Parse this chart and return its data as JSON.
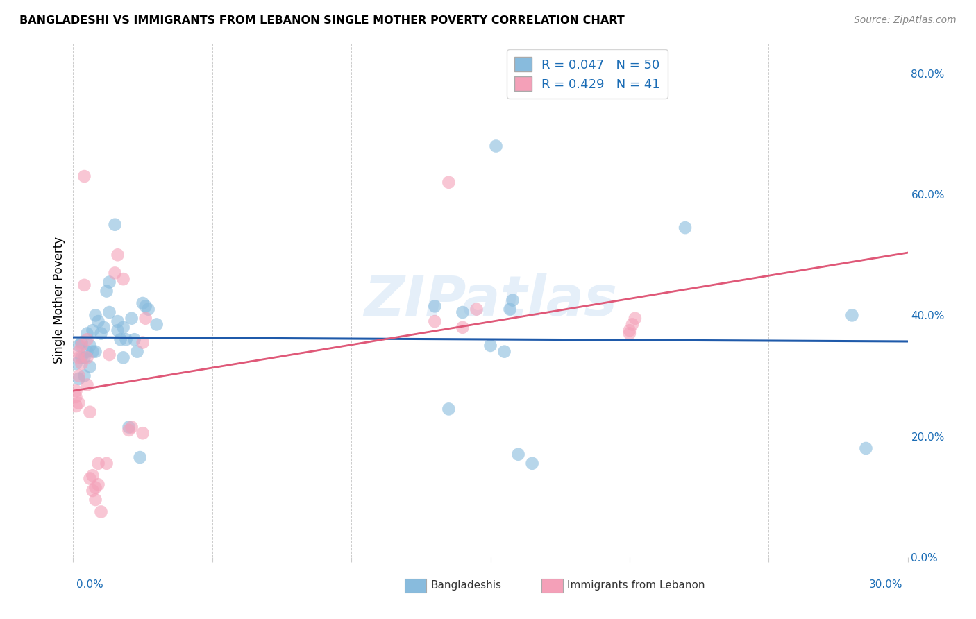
{
  "title": "BANGLADESHI VS IMMIGRANTS FROM LEBANON SINGLE MOTHER POVERTY CORRELATION CHART",
  "source": "Source: ZipAtlas.com",
  "ylabel": "Single Mother Poverty",
  "watermark": "ZIPatlas",
  "legend1_r": "0.047",
  "legend1_n": "50",
  "legend2_r": "0.429",
  "legend2_n": "41",
  "blue_color": "#88bbdd",
  "pink_color": "#f4a0b8",
  "blue_line_color": "#1f5aaa",
  "pink_line_color": "#e05878",
  "gray_dash_color": "#bbbbbb",
  "legend_text_color": "#1a6cb5",
  "axis_text_color": "#1a6cb5",
  "blue_scatter": [
    [
      0.001,
      0.32
    ],
    [
      0.002,
      0.295
    ],
    [
      0.002,
      0.35
    ],
    [
      0.003,
      0.355
    ],
    [
      0.003,
      0.33
    ],
    [
      0.004,
      0.33
    ],
    [
      0.004,
      0.3
    ],
    [
      0.005,
      0.37
    ],
    [
      0.005,
      0.34
    ],
    [
      0.006,
      0.35
    ],
    [
      0.006,
      0.315
    ],
    [
      0.007,
      0.375
    ],
    [
      0.007,
      0.34
    ],
    [
      0.008,
      0.34
    ],
    [
      0.008,
      0.4
    ],
    [
      0.009,
      0.39
    ],
    [
      0.01,
      0.37
    ],
    [
      0.011,
      0.38
    ],
    [
      0.012,
      0.44
    ],
    [
      0.013,
      0.455
    ],
    [
      0.013,
      0.405
    ],
    [
      0.015,
      0.55
    ],
    [
      0.016,
      0.375
    ],
    [
      0.016,
      0.39
    ],
    [
      0.017,
      0.36
    ],
    [
      0.018,
      0.33
    ],
    [
      0.018,
      0.38
    ],
    [
      0.019,
      0.36
    ],
    [
      0.02,
      0.215
    ],
    [
      0.021,
      0.395
    ],
    [
      0.022,
      0.36
    ],
    [
      0.023,
      0.34
    ],
    [
      0.024,
      0.165
    ],
    [
      0.025,
      0.42
    ],
    [
      0.026,
      0.415
    ],
    [
      0.027,
      0.41
    ],
    [
      0.03,
      0.385
    ],
    [
      0.13,
      0.415
    ],
    [
      0.135,
      0.245
    ],
    [
      0.14,
      0.405
    ],
    [
      0.15,
      0.35
    ],
    [
      0.152,
      0.68
    ],
    [
      0.155,
      0.34
    ],
    [
      0.157,
      0.41
    ],
    [
      0.158,
      0.425
    ],
    [
      0.16,
      0.17
    ],
    [
      0.165,
      0.155
    ],
    [
      0.22,
      0.545
    ],
    [
      0.28,
      0.4
    ],
    [
      0.285,
      0.18
    ]
  ],
  "pink_scatter": [
    [
      0.001,
      0.25
    ],
    [
      0.001,
      0.275
    ],
    [
      0.001,
      0.265
    ],
    [
      0.002,
      0.33
    ],
    [
      0.002,
      0.34
    ],
    [
      0.002,
      0.3
    ],
    [
      0.002,
      0.255
    ],
    [
      0.003,
      0.35
    ],
    [
      0.003,
      0.32
    ],
    [
      0.004,
      0.63
    ],
    [
      0.004,
      0.45
    ],
    [
      0.005,
      0.36
    ],
    [
      0.005,
      0.33
    ],
    [
      0.005,
      0.285
    ],
    [
      0.006,
      0.24
    ],
    [
      0.006,
      0.13
    ],
    [
      0.007,
      0.135
    ],
    [
      0.007,
      0.11
    ],
    [
      0.008,
      0.095
    ],
    [
      0.008,
      0.115
    ],
    [
      0.009,
      0.12
    ],
    [
      0.009,
      0.155
    ],
    [
      0.01,
      0.075
    ],
    [
      0.012,
      0.155
    ],
    [
      0.013,
      0.335
    ],
    [
      0.015,
      0.47
    ],
    [
      0.016,
      0.5
    ],
    [
      0.018,
      0.46
    ],
    [
      0.02,
      0.21
    ],
    [
      0.021,
      0.215
    ],
    [
      0.025,
      0.205
    ],
    [
      0.025,
      0.355
    ],
    [
      0.026,
      0.395
    ],
    [
      0.13,
      0.39
    ],
    [
      0.135,
      0.62
    ],
    [
      0.14,
      0.38
    ],
    [
      0.145,
      0.41
    ],
    [
      0.2,
      0.37
    ],
    [
      0.2,
      0.375
    ],
    [
      0.201,
      0.385
    ],
    [
      0.202,
      0.395
    ]
  ],
  "xlim": [
    0.0,
    0.3
  ],
  "ylim": [
    0.0,
    0.85
  ],
  "background_color": "#ffffff",
  "grid_color": "#cccccc"
}
